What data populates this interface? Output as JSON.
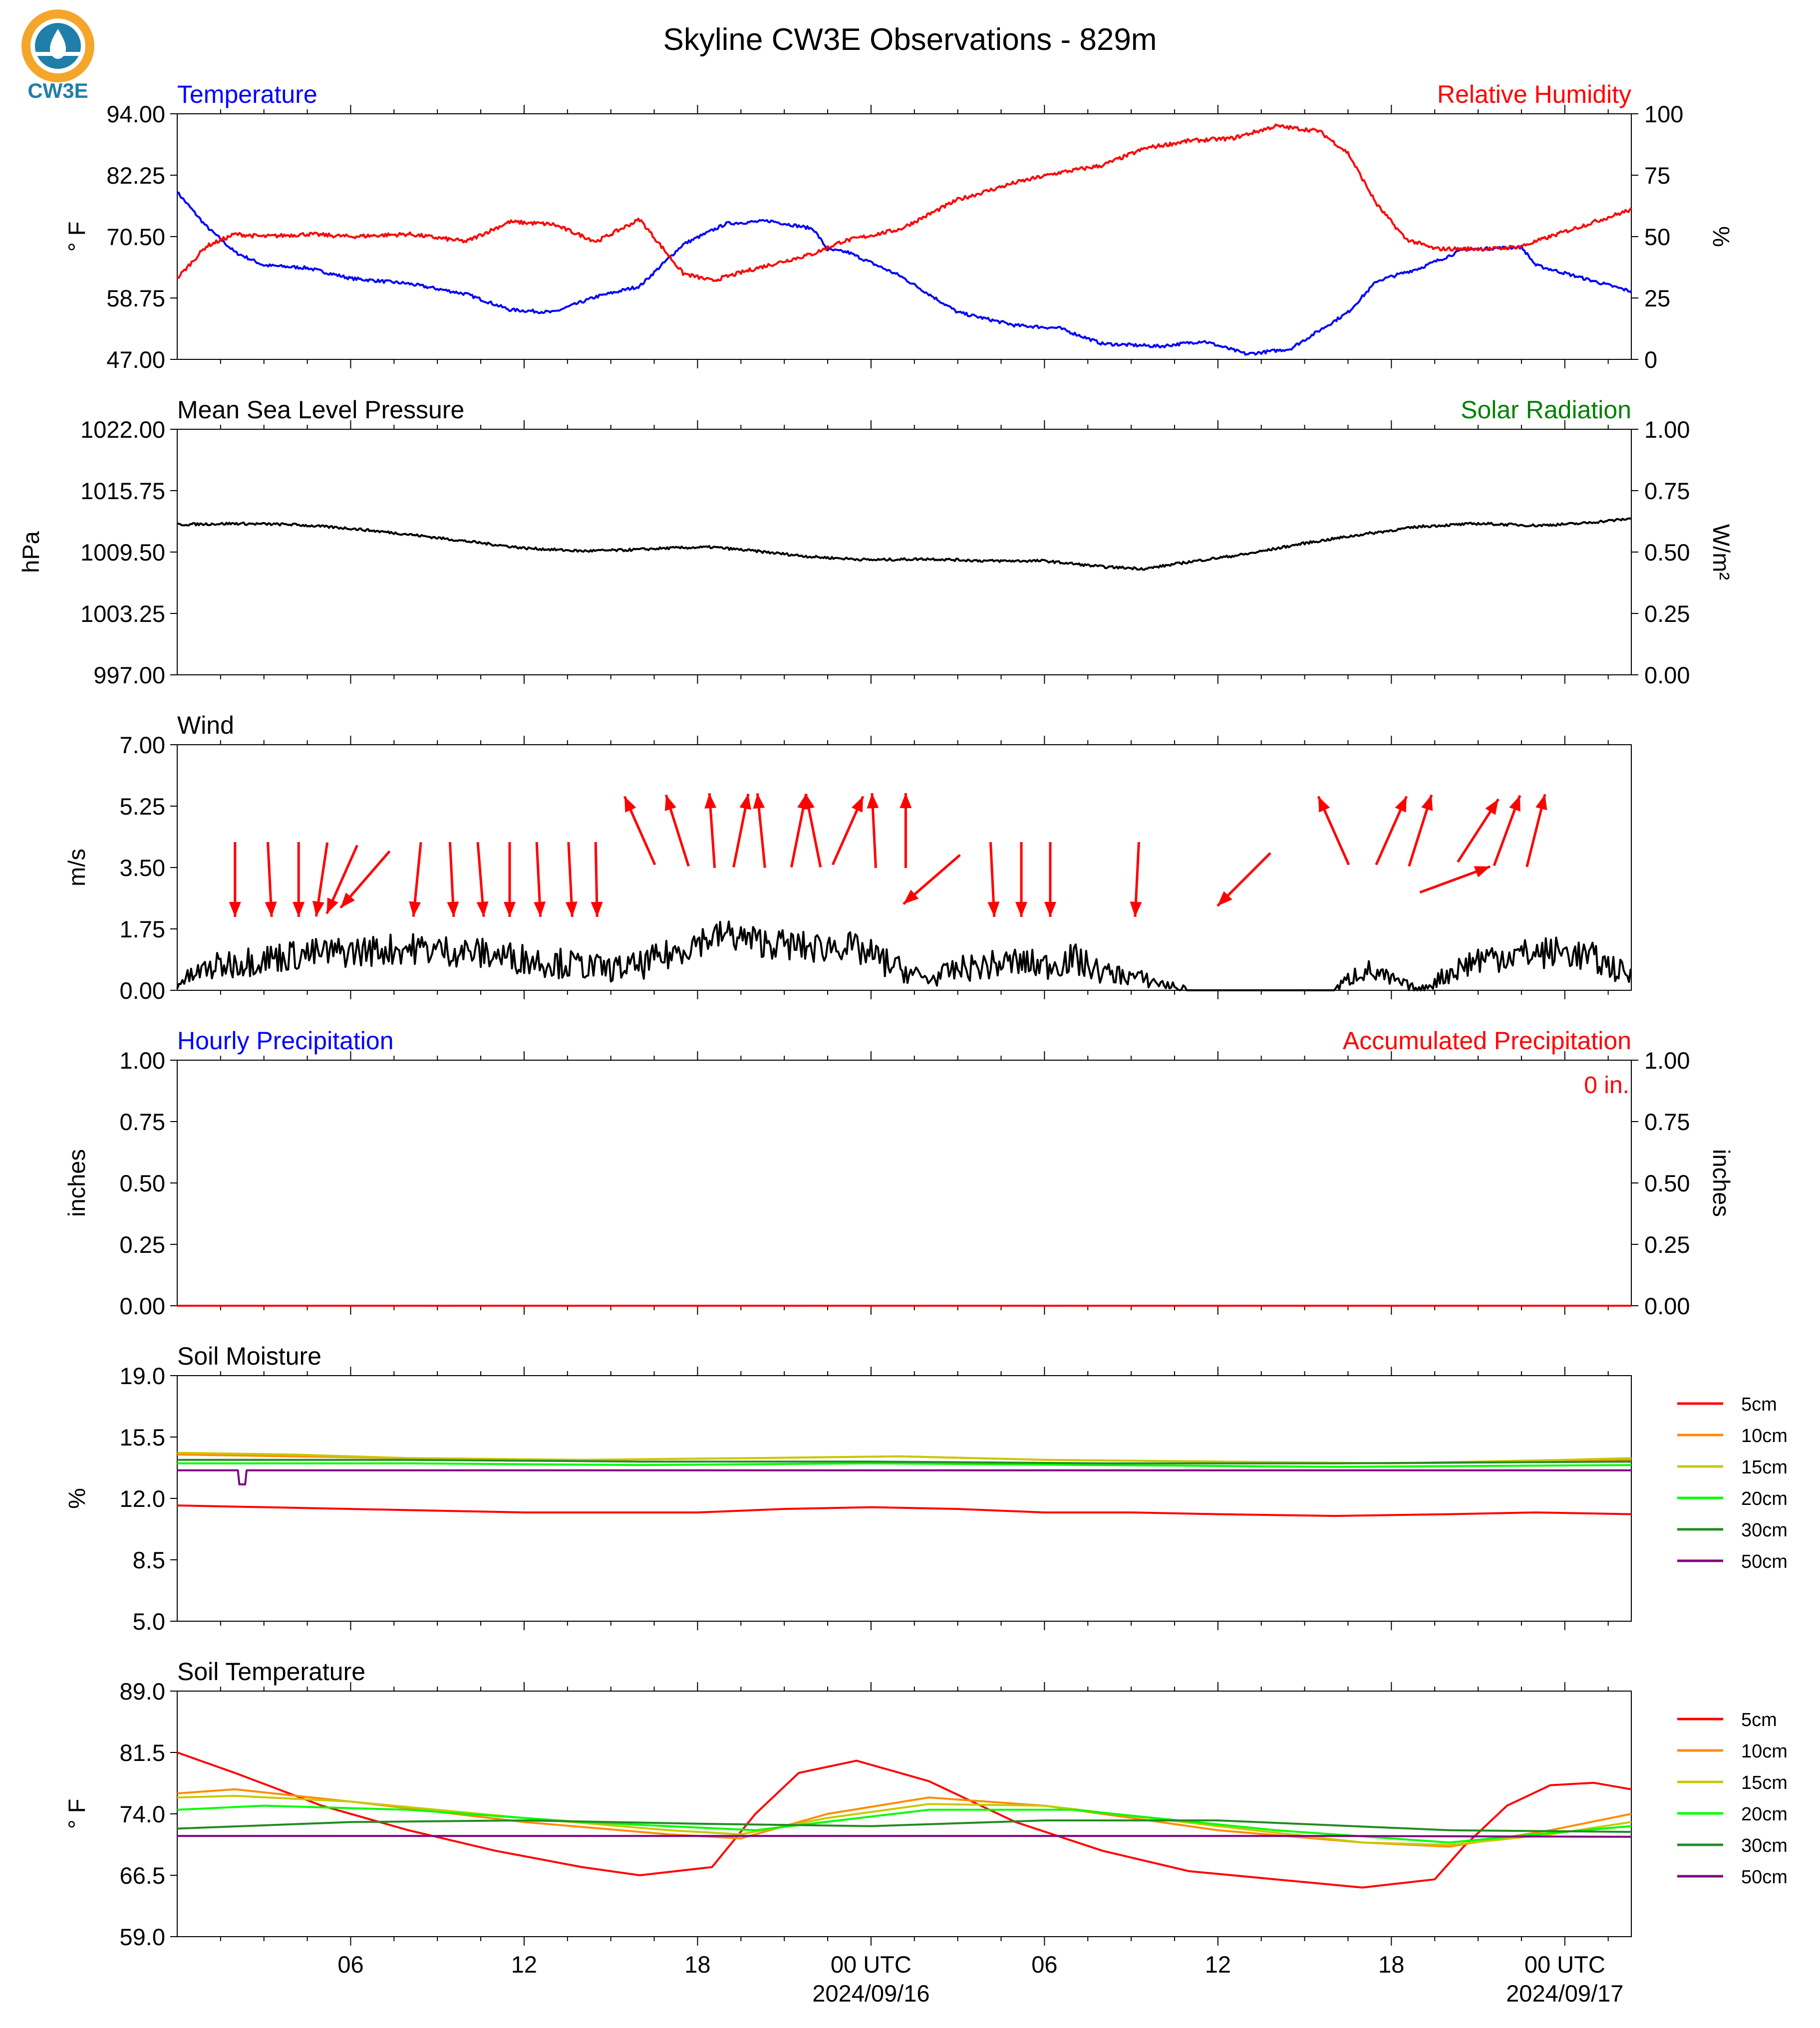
{
  "title": "Skyline CW3E Observations - 829m",
  "logo_text": "CW3E",
  "colors": {
    "temperature": "#0000ff",
    "humidity": "#ff0000",
    "pressure": "#000000",
    "solar": "#008000",
    "wind": "#000000",
    "wind_arrow": "#ff0000",
    "hourly_precip": "#0000ff",
    "accum_precip": "#ff0000",
    "logo_orange": "#f4a62a",
    "logo_blue": "#1f7fa8"
  },
  "time_axis": {
    "ticks": [
      "06",
      "12",
      "18",
      "00 UTC",
      "06",
      "12",
      "18",
      "00 UTC"
    ],
    "dates": [
      "2024/09/16",
      "2024/09/17"
    ],
    "range_hours": [
      0,
      50.3
    ]
  },
  "chart_data": [
    {
      "type": "line",
      "left_title": "Temperature",
      "right_title": "Relative Humidity",
      "ylabel": "° F",
      "ylabel2": "%",
      "ylim": [
        47.0,
        94.0
      ],
      "ylim2": [
        0,
        100
      ],
      "yticks": [
        "47.00",
        "58.75",
        "70.50",
        "82.25",
        "94.00"
      ],
      "yticks2": [
        "0",
        "25",
        "50",
        "75",
        "100"
      ],
      "series": [
        {
          "name": "Temperature",
          "axis": "left",
          "color": "#0000ff",
          "x": [
            0,
            1,
            2,
            3,
            4.5,
            6,
            8,
            10,
            11.5,
            13,
            14.5,
            16,
            17.5,
            19,
            20.5,
            22,
            22.5,
            23.2,
            25,
            27,
            29,
            30.5,
            32,
            34,
            35.5,
            37,
            38.5,
            40.5,
            41.5,
            43,
            44.5,
            46.5,
            47,
            48,
            50.3
          ],
          "y": [
            79,
            72.5,
            67.5,
            65,
            64.5,
            62.5,
            61.5,
            59.5,
            56.5,
            56,
            59,
            61,
            69,
            73,
            73.5,
            72,
            68,
            67.5,
            63,
            56,
            53.5,
            53,
            50,
            49.5,
            50.5,
            48,
            49,
            56,
            62,
            64.5,
            68,
            68.5,
            65,
            63.5,
            60
          ]
        },
        {
          "name": "Relative Humidity",
          "axis": "right",
          "color": "#ff0000",
          "x": [
            0,
            1,
            2,
            3,
            4.5,
            6,
            8,
            10,
            11.5,
            13,
            14.5,
            16,
            17.5,
            18.5,
            20,
            22,
            23,
            25,
            27,
            29,
            30.5,
            32,
            33.5,
            35,
            36.5,
            38,
            39.5,
            40.5,
            41.5,
            42.5,
            43.5,
            45.5,
            46.5,
            48,
            50.3
          ],
          "y": [
            33,
            46,
            51,
            50,
            51,
            50,
            51,
            48,
            56,
            55,
            48,
            57,
            35,
            32,
            37,
            43,
            48,
            53,
            65,
            72,
            76,
            79,
            86,
            89,
            90,
            95,
            93,
            84,
            63,
            49,
            45,
            45,
            46,
            52,
            61
          ]
        }
      ]
    },
    {
      "type": "line",
      "left_title": "Mean Sea Level Pressure",
      "right_title": "Solar Radiation",
      "ylabel": "hPa",
      "ylabel2": "W/m²",
      "ylim": [
        997.0,
        1022.0
      ],
      "ylim2": [
        0.0,
        1.0
      ],
      "yticks": [
        "997.00",
        "1003.25",
        "1009.50",
        "1015.75",
        "1022.00"
      ],
      "yticks2": [
        "0.00",
        "0.25",
        "0.50",
        "0.75",
        "1.00"
      ],
      "series": [
        {
          "name": "Mean Sea Level Pressure",
          "axis": "left",
          "color": "#000000",
          "x": [
            0,
            2,
            4,
            6,
            8,
            10,
            12,
            14,
            15.5,
            17,
            18.5,
            20,
            22,
            24,
            26,
            28,
            30,
            32,
            33.5,
            35,
            37,
            39,
            41,
            43,
            45,
            47,
            48.5,
            50.3
          ],
          "y": [
            1012.3,
            1012.4,
            1012.3,
            1011.9,
            1011.3,
            1010.6,
            1009.9,
            1009.6,
            1009.7,
            1009.9,
            1010.0,
            1009.6,
            1009.0,
            1008.7,
            1008.8,
            1008.6,
            1008.6,
            1008.0,
            1007.8,
            1008.5,
            1009.3,
            1010.4,
            1011.3,
            1012.1,
            1012.4,
            1012.2,
            1012.4,
            1012.9
          ]
        }
      ]
    },
    {
      "type": "line",
      "left_title": "Wind",
      "ylabel": "m/s",
      "ylim": [
        0.0,
        7.0
      ],
      "yticks": [
        "0.00",
        "1.75",
        "3.50",
        "5.25",
        "7.00"
      ],
      "series": [
        {
          "name": "Wind",
          "axis": "left",
          "color": "#000000",
          "x": [
            0,
            1,
            2,
            4,
            6,
            8,
            10,
            12,
            14,
            15,
            16,
            17,
            18,
            19,
            20,
            22,
            23,
            24,
            25,
            26,
            27,
            29,
            30,
            31,
            32,
            33,
            34,
            35,
            36,
            37,
            38,
            39,
            40,
            41,
            42,
            43,
            44,
            45,
            46,
            48,
            49,
            50.3
          ],
          "y": [
            0.2,
            0.6,
            0.8,
            1.0,
            1.1,
            1.2,
            1.1,
            0.9,
            0.7,
            0.6,
            0.7,
            1.0,
            1.4,
            1.6,
            1.4,
            1.2,
            1.3,
            1.0,
            0.6,
            0.3,
            0.6,
            0.8,
            0.7,
            0.9,
            0.5,
            0.4,
            0.2,
            0,
            0,
            0,
            0,
            0,
            0,
            0.6,
            0.3,
            0,
            0.5,
            0.9,
            1.0,
            1.1,
            0.9,
            0.4
          ]
        }
      ],
      "arrows": [
        {
          "x": 2.0,
          "u": 0.0,
          "v": -1.0,
          "high": false
        },
        {
          "x": 3.2,
          "u": 0.05,
          "v": -1.0,
          "high": false
        },
        {
          "x": 4.2,
          "u": 0.0,
          "v": -1.0,
          "high": false
        },
        {
          "x": 5.0,
          "u": -0.15,
          "v": -1.0,
          "high": false
        },
        {
          "x": 5.7,
          "u": -0.4,
          "v": -0.9,
          "high": false
        },
        {
          "x": 6.5,
          "u": -0.65,
          "v": -0.75,
          "high": false
        },
        {
          "x": 8.3,
          "u": -0.1,
          "v": -1.0,
          "high": false
        },
        {
          "x": 9.5,
          "u": 0.05,
          "v": -1.0,
          "high": false
        },
        {
          "x": 10.5,
          "u": 0.08,
          "v": -1.0,
          "high": false
        },
        {
          "x": 11.5,
          "u": 0.0,
          "v": -1.0,
          "high": false
        },
        {
          "x": 12.5,
          "u": 0.05,
          "v": -1.0,
          "high": false
        },
        {
          "x": 13.6,
          "u": 0.05,
          "v": -1.0,
          "high": false
        },
        {
          "x": 14.5,
          "u": 0.02,
          "v": -1.0,
          "high": false
        },
        {
          "x": 16.0,
          "u": -0.4,
          "v": 0.9,
          "high": true
        },
        {
          "x": 17.3,
          "u": -0.3,
          "v": 0.95,
          "high": true
        },
        {
          "x": 18.5,
          "u": -0.07,
          "v": 1.0,
          "high": true
        },
        {
          "x": 19.5,
          "u": 0.2,
          "v": 1.0,
          "high": true
        },
        {
          "x": 20.2,
          "u": -0.1,
          "v": 1.0,
          "high": true
        },
        {
          "x": 21.5,
          "u": 0.2,
          "v": 1.0,
          "high": true
        },
        {
          "x": 22.0,
          "u": -0.2,
          "v": 1.0,
          "high": true
        },
        {
          "x": 23.2,
          "u": 0.4,
          "v": 0.9,
          "high": true
        },
        {
          "x": 24.1,
          "u": -0.05,
          "v": 1.0,
          "high": true
        },
        {
          "x": 25.2,
          "u": 0.0,
          "v": 1.0,
          "high": true
        },
        {
          "x": 26.1,
          "u": -0.75,
          "v": -0.65,
          "high": false
        },
        {
          "x": 28.2,
          "u": 0.05,
          "v": -1.0,
          "high": false
        },
        {
          "x": 29.2,
          "u": 0.0,
          "v": -1.0,
          "high": false
        },
        {
          "x": 30.2,
          "u": 0.0,
          "v": -1.0,
          "high": false
        },
        {
          "x": 33.2,
          "u": -0.05,
          "v": -1.0,
          "high": false
        },
        {
          "x": 36.9,
          "u": -0.7,
          "v": -0.7,
          "high": false
        },
        {
          "x": 40.0,
          "u": -0.4,
          "v": 0.9,
          "high": true
        },
        {
          "x": 42.0,
          "u": 0.4,
          "v": 0.9,
          "high": true
        },
        {
          "x": 43.0,
          "u": 0.3,
          "v": 0.95,
          "high": true
        },
        {
          "x": 44.2,
          "u": 0.95,
          "v": 0.35,
          "high": false
        },
        {
          "x": 45.0,
          "u": 0.55,
          "v": 0.85,
          "high": true
        },
        {
          "x": 46.0,
          "u": 0.35,
          "v": 0.95,
          "high": true
        },
        {
          "x": 47.0,
          "u": 0.25,
          "v": 1.0,
          "high": true
        }
      ]
    },
    {
      "type": "line",
      "left_title": "Hourly Precipitation",
      "right_title": "Accumulated Precipitation",
      "annotation": "0 in.",
      "ylabel": "inches",
      "ylabel2": "inches",
      "ylim": [
        0.0,
        1.0
      ],
      "ylim2": [
        0.0,
        1.0
      ],
      "yticks": [
        "0.00",
        "0.25",
        "0.50",
        "0.75",
        "1.00"
      ],
      "yticks2": [
        "0.00",
        "0.25",
        "0.50",
        "0.75",
        "1.00"
      ],
      "series": [
        {
          "name": "Hourly Precipitation",
          "axis": "left",
          "color": "#0000ff",
          "x": [
            0,
            50.3
          ],
          "y": [
            0,
            0
          ]
        },
        {
          "name": "Accumulated Precipitation",
          "axis": "right",
          "color": "#ff0000",
          "x": [
            0,
            50.3
          ],
          "y": [
            0,
            0
          ]
        }
      ]
    },
    {
      "type": "line",
      "left_title": "Soil Moisture",
      "ylabel": "%",
      "ylim": [
        5.0,
        19.0
      ],
      "yticks": [
        "5.0",
        "8.5",
        "12.0",
        "15.5",
        "19.0"
      ],
      "legend": "right",
      "series": [
        {
          "name": "5cm",
          "color": "#ff0000",
          "x": [
            0,
            6,
            12,
            18,
            21,
            24,
            27,
            30,
            33,
            36,
            40,
            44,
            47,
            50.3
          ],
          "y": [
            11.6,
            11.4,
            11.2,
            11.2,
            11.4,
            11.5,
            11.4,
            11.2,
            11.2,
            11.1,
            11.0,
            11.1,
            11.2,
            11.1
          ]
        },
        {
          "name": "10cm",
          "color": "#ff8c00",
          "x": [
            0,
            4,
            8,
            14,
            20,
            25,
            30,
            36,
            42,
            48,
            50.3
          ],
          "y": [
            14.5,
            14.4,
            14.3,
            14.2,
            14.3,
            14.4,
            14.2,
            14.1,
            14.0,
            14.1,
            14.2
          ]
        },
        {
          "name": "15cm",
          "color": "#c8c800",
          "x": [
            0,
            4,
            8,
            14,
            20,
            25,
            30,
            36,
            42,
            48,
            50.3
          ],
          "y": [
            14.6,
            14.5,
            14.3,
            14.2,
            14.3,
            14.4,
            14.2,
            14.1,
            14.0,
            14.2,
            14.3
          ]
        },
        {
          "name": "20cm",
          "color": "#00ff00",
          "x": [
            0,
            8,
            16,
            24,
            32,
            40,
            50.3
          ],
          "y": [
            14.0,
            14.0,
            13.9,
            14.0,
            13.9,
            13.8,
            13.9
          ]
        },
        {
          "name": "30cm",
          "color": "#228b22",
          "x": [
            0,
            8,
            16,
            24,
            32,
            40,
            50.3
          ],
          "y": [
            14.2,
            14.2,
            14.1,
            14.1,
            14.0,
            14.0,
            14.1
          ]
        },
        {
          "name": "50cm",
          "color": "#800080",
          "x": [
            0,
            2.1,
            2.15,
            2.35,
            2.4,
            10,
            20,
            30,
            40,
            50.3
          ],
          "y": [
            13.6,
            13.6,
            12.8,
            12.8,
            13.6,
            13.6,
            13.6,
            13.6,
            13.6,
            13.6
          ]
        }
      ]
    },
    {
      "type": "line",
      "left_title": "Soil Temperature",
      "ylabel": "° F",
      "ylim": [
        59.0,
        89.0
      ],
      "yticks": [
        "59.0",
        "66.5",
        "74.0",
        "81.5",
        "89.0"
      ],
      "legend": "right",
      "series": [
        {
          "name": "5cm",
          "color": "#ff0000",
          "x": [
            0,
            2,
            5,
            8,
            11,
            14,
            16,
            18.5,
            20,
            21.5,
            23.5,
            26,
            29,
            32,
            35,
            38,
            41,
            43.5,
            44.5,
            46,
            47.5,
            49,
            50.3
          ],
          "y": [
            81.5,
            79,
            75,
            72,
            69.5,
            67.5,
            66.5,
            67.5,
            74,
            79,
            80.5,
            78,
            73,
            69.5,
            67,
            66,
            65,
            66,
            70,
            75,
            77.5,
            77.8,
            77
          ]
        },
        {
          "name": "10cm",
          "color": "#ff8c00",
          "x": [
            0,
            2,
            6,
            12,
            17,
            19.5,
            22.5,
            26,
            30,
            36,
            41,
            44,
            47.5,
            50.3
          ],
          "y": [
            76.5,
            77,
            75.5,
            73,
            71.5,
            71,
            74,
            76,
            75,
            72,
            70.5,
            70,
            72,
            74
          ]
        },
        {
          "name": "15cm",
          "color": "#c8c800",
          "x": [
            0,
            2,
            6,
            12,
            17,
            19.5,
            22.5,
            26,
            30,
            36,
            41,
            44,
            47.5,
            50.3
          ],
          "y": [
            76,
            76.2,
            75.5,
            73.5,
            72,
            71.5,
            73.5,
            75.2,
            75,
            72.5,
            70.5,
            70.2,
            71.5,
            73
          ]
        },
        {
          "name": "20cm",
          "color": "#00ff00",
          "x": [
            0,
            3,
            8,
            14,
            20,
            26,
            31,
            38,
            44,
            47,
            50.3
          ],
          "y": [
            74.5,
            75,
            74.5,
            73,
            72,
            74.5,
            74.5,
            72,
            70.5,
            71.5,
            72.5
          ]
        },
        {
          "name": "30cm",
          "color": "#228b22",
          "x": [
            0,
            6,
            12,
            18,
            24,
            30,
            36,
            44,
            50.3
          ],
          "y": [
            72.2,
            73,
            73.2,
            72.8,
            72.5,
            73.2,
            73.2,
            72,
            71.8
          ]
        },
        {
          "name": "50cm",
          "color": "#800080",
          "x": [
            0,
            10,
            20,
            30,
            40,
            50.3
          ],
          "y": [
            71.3,
            71.3,
            71.3,
            71.3,
            71.3,
            71.2
          ]
        }
      ]
    }
  ]
}
